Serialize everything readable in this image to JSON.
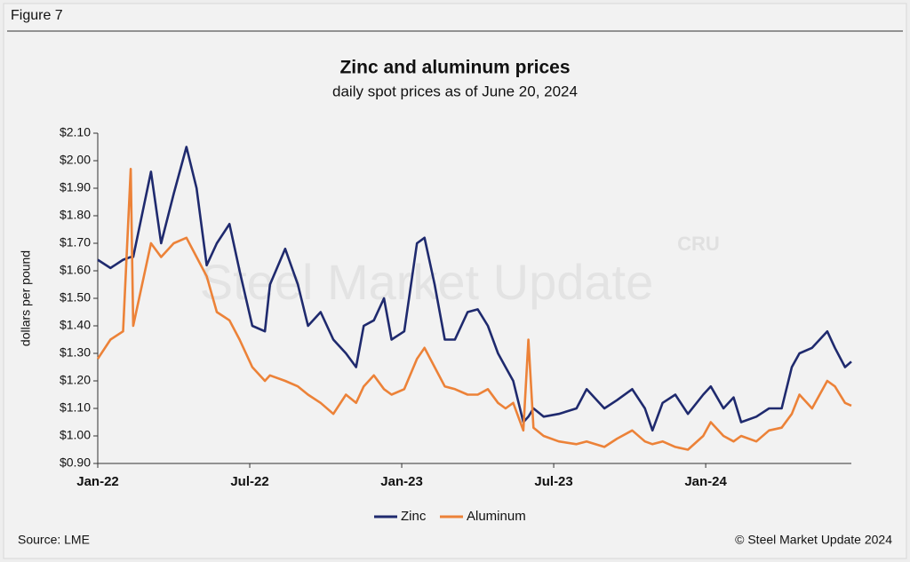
{
  "figure_label": "Figure 7",
  "source": "Source: LME",
  "copyright": "© Steel Market Update 2024",
  "chart_data": {
    "type": "line",
    "title": "Zinc and aluminum prices",
    "subtitle": "daily spot prices as of June 20, 2024",
    "ylabel": "dollars per pound",
    "watermark": "Steel Market Update",
    "watermark_logo": "CRU",
    "legend_position": "bottom",
    "xlim": [
      0,
      29.75
    ],
    "xticks": [
      {
        "value": 0,
        "label": "Jan-22"
      },
      {
        "value": 6,
        "label": "Jul-22"
      },
      {
        "value": 12,
        "label": "Jan-23"
      },
      {
        "value": 18,
        "label": "Jul-23"
      },
      {
        "value": 24,
        "label": "Jan-24"
      }
    ],
    "ylim": [
      0.9,
      2.1
    ],
    "yticks": [
      {
        "value": 0.9,
        "label": "$0.90"
      },
      {
        "value": 1.0,
        "label": "$1.00"
      },
      {
        "value": 1.1,
        "label": "$1.10"
      },
      {
        "value": 1.2,
        "label": "$1.20"
      },
      {
        "value": 1.3,
        "label": "$1.30"
      },
      {
        "value": 1.4,
        "label": "$1.40"
      },
      {
        "value": 1.5,
        "label": "$1.50"
      },
      {
        "value": 1.6,
        "label": "$1.60"
      },
      {
        "value": 1.7,
        "label": "$1.70"
      },
      {
        "value": 1.8,
        "label": "$1.80"
      },
      {
        "value": 1.9,
        "label": "$1.90"
      },
      {
        "value": 2.0,
        "label": "$2.00"
      },
      {
        "value": 2.1,
        "label": "$2.10"
      }
    ],
    "x": [
      0,
      0.5,
      1.0,
      1.3,
      1.4,
      2.1,
      2.5,
      3.0,
      3.5,
      3.9,
      4.3,
      4.7,
      5.2,
      5.6,
      6.1,
      6.6,
      6.8,
      7.4,
      7.9,
      8.3,
      8.8,
      9.3,
      9.8,
      10.2,
      10.5,
      10.9,
      11.3,
      11.6,
      12.1,
      12.6,
      12.9,
      13.3,
      13.7,
      14.1,
      14.6,
      15.0,
      15.4,
      15.8,
      16.1,
      16.4,
      16.8,
      17.0,
      17.2,
      17.6,
      18.2,
      18.9,
      19.3,
      20.0,
      20.5,
      21.1,
      21.6,
      21.9,
      22.3,
      22.8,
      23.3,
      23.9,
      24.2,
      24.7,
      25.1,
      25.4,
      26.0,
      26.5,
      27.0,
      27.4,
      27.7,
      28.2,
      28.8,
      29.1,
      29.5,
      29.75
    ],
    "series": [
      {
        "name": "Zinc",
        "color": "#1f2a6e",
        "width": 2.6,
        "values": [
          1.64,
          1.61,
          1.64,
          1.65,
          1.65,
          1.96,
          1.7,
          1.88,
          2.05,
          1.9,
          1.62,
          1.7,
          1.77,
          1.6,
          1.4,
          1.38,
          1.55,
          1.68,
          1.55,
          1.4,
          1.45,
          1.35,
          1.3,
          1.25,
          1.4,
          1.42,
          1.5,
          1.35,
          1.38,
          1.7,
          1.72,
          1.55,
          1.35,
          1.35,
          1.45,
          1.46,
          1.4,
          1.3,
          1.25,
          1.2,
          1.05,
          1.07,
          1.1,
          1.07,
          1.08,
          1.1,
          1.17,
          1.1,
          1.13,
          1.17,
          1.1,
          1.02,
          1.12,
          1.15,
          1.08,
          1.15,
          1.18,
          1.1,
          1.14,
          1.05,
          1.07,
          1.1,
          1.1,
          1.25,
          1.3,
          1.32,
          1.38,
          1.32,
          1.25,
          1.27
        ]
      },
      {
        "name": "Aluminum",
        "color": "#ec8238",
        "width": 2.6,
        "values": [
          1.28,
          1.35,
          1.38,
          1.97,
          1.4,
          1.7,
          1.65,
          1.7,
          1.72,
          1.65,
          1.58,
          1.45,
          1.42,
          1.35,
          1.25,
          1.2,
          1.22,
          1.2,
          1.18,
          1.15,
          1.12,
          1.08,
          1.15,
          1.12,
          1.18,
          1.22,
          1.17,
          1.15,
          1.17,
          1.28,
          1.32,
          1.25,
          1.18,
          1.17,
          1.15,
          1.15,
          1.17,
          1.12,
          1.1,
          1.12,
          1.02,
          1.35,
          1.03,
          1.0,
          0.98,
          0.97,
          0.98,
          0.96,
          0.99,
          1.02,
          0.98,
          0.97,
          0.98,
          0.96,
          0.95,
          1.0,
          1.05,
          1.0,
          0.98,
          1.0,
          0.98,
          1.02,
          1.03,
          1.08,
          1.15,
          1.1,
          1.2,
          1.18,
          1.12,
          1.11
        ]
      }
    ]
  }
}
